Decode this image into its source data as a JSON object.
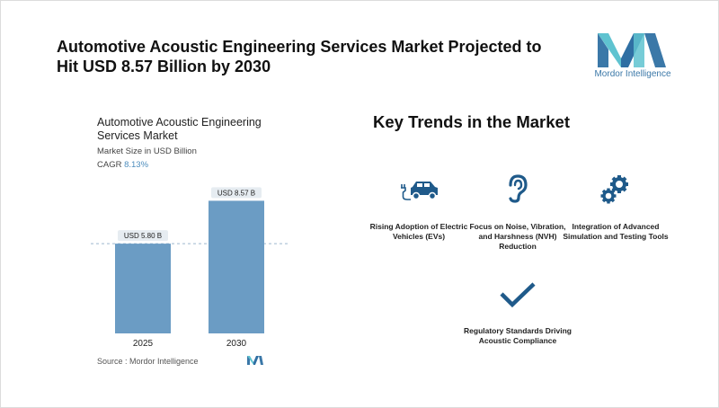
{
  "headline": "Automotive Acoustic Engineering Services Market Projected to Hit USD 8.57 Billion by 2030",
  "brand": {
    "name": "Mordor Intelligence",
    "color": "#3b78a8",
    "accent": "#5fc3d0"
  },
  "chart_panel": {
    "title": "Automotive Acoustic Engineering Services Market",
    "subtitle": "Market Size in USD Billion",
    "cagr_label": "CAGR",
    "cagr_value": "8.13%",
    "source": "Source :  Mordor Intelligence"
  },
  "chart_data": {
    "type": "bar",
    "categories": [
      "2025",
      "2030"
    ],
    "values": [
      5.8,
      8.57
    ],
    "data_labels": [
      "USD 5.80 B",
      "USD 8.57 B"
    ],
    "ylim": [
      0,
      9
    ],
    "reference_line": 5.8,
    "bar_color": "#6b9cc4",
    "grid": false
  },
  "trends": {
    "title": "Key Trends in the Market",
    "items": [
      {
        "label": "Rising Adoption of Electric Vehicles (EVs)",
        "icon": "electric-car-icon"
      },
      {
        "label": "Focus on Noise, Vibration, and Harshness (NVH) Reduction",
        "icon": "ear-icon"
      },
      {
        "label": "Integration of Advanced Simulation and Testing Tools",
        "icon": "gears-icon"
      },
      {
        "label": "Regulatory Standards Driving Acoustic Compliance",
        "icon": "checkmark-icon"
      }
    ],
    "icon_color": "#1f5a8a"
  }
}
